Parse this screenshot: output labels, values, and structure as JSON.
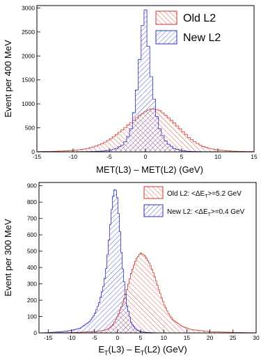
{
  "colors": {
    "old": "#d2332a",
    "new": "#2a2ec0",
    "axis": "#000000"
  },
  "chart_data": [
    {
      "type": "histogram",
      "xlabel": "MET(L3) – MET(L2)  (GeV)",
      "ylabel": "Event per 400 MeV",
      "xlim": [
        -15,
        15
      ],
      "ylim": [
        0,
        3050
      ],
      "xticks": [
        -15,
        -10,
        -5,
        0,
        5,
        10,
        15
      ],
      "yticks": [
        0,
        500,
        1000,
        1500,
        2000,
        2500,
        3000
      ],
      "bin_width": 0.4,
      "legend_position": "top-right",
      "series": [
        {
          "name": "Old L2",
          "color_key": "old",
          "x": [
            -15,
            -14,
            -13,
            -12,
            -11,
            -10,
            -9,
            -8,
            -7,
            -6,
            -5,
            -4,
            -3,
            -2,
            -1,
            0,
            0.5,
            1,
            1.5,
            2,
            2.5,
            3,
            4,
            5,
            6,
            7,
            8,
            9,
            10,
            11,
            12,
            13,
            14,
            15
          ],
          "y": [
            5,
            8,
            10,
            14,
            20,
            30,
            45,
            70,
            110,
            170,
            250,
            360,
            480,
            610,
            740,
            840,
            880,
            900,
            890,
            860,
            800,
            740,
            600,
            450,
            300,
            190,
            110,
            65,
            40,
            25,
            15,
            10,
            7,
            5
          ]
        },
        {
          "name": "New L2",
          "color_key": "new",
          "x": [
            -15,
            -10,
            -8,
            -6,
            -5,
            -4,
            -3,
            -2.5,
            -2,
            -1.5,
            -1,
            -0.6,
            -0.3,
            0,
            0.2,
            0.4,
            0.7,
            1,
            1.5,
            2,
            2.5,
            3,
            4,
            5,
            6,
            8,
            10,
            15
          ],
          "y": [
            0,
            2,
            5,
            15,
            30,
            70,
            160,
            280,
            480,
            900,
            1550,
            2300,
            2800,
            2960,
            2700,
            2200,
            1700,
            1300,
            800,
            480,
            300,
            180,
            70,
            25,
            10,
            4,
            2,
            0
          ]
        }
      ]
    },
    {
      "type": "histogram",
      "xlabel_parts": {
        "e1": "E",
        "sub1": "T",
        "mid": "(L3) – E",
        "sub2": "T",
        "end": "(L2)     (GeV)"
      },
      "ylabel": "Event per 300 MeV",
      "xlim": [
        -17,
        30
      ],
      "ylim": [
        0,
        920
      ],
      "xticks": [
        -15,
        -10,
        -5,
        0,
        5,
        10,
        15,
        20,
        25,
        30
      ],
      "yticks": [
        0,
        100,
        200,
        300,
        400,
        500,
        600,
        700,
        800,
        900
      ],
      "bin_width": 0.3,
      "legend_position": "top-right",
      "series": [
        {
          "name": "Old L2",
          "legend_parts": {
            "pre": "Old L2: <ΔE",
            "sub": "T",
            "post": ">=5.2 GeV"
          },
          "color_key": "old",
          "x": [
            -17,
            -10,
            -5,
            -3,
            -2,
            -1,
            0,
            1,
            2,
            3,
            4,
            5,
            6,
            7,
            8,
            9,
            10,
            11,
            12,
            14,
            16,
            20,
            25,
            30
          ],
          "y": [
            0,
            2,
            8,
            15,
            25,
            50,
            100,
            170,
            260,
            370,
            450,
            490,
            470,
            420,
            350,
            260,
            180,
            120,
            80,
            40,
            20,
            8,
            3,
            1
          ]
        },
        {
          "name": "New L2",
          "legend_parts": {
            "pre": "New L2: <ΔE",
            "sub": "T",
            "post": ">=0.4 GeV"
          },
          "color_key": "new",
          "x": [
            -17,
            -15,
            -12,
            -10,
            -8,
            -6,
            -5,
            -4,
            -3,
            -2.5,
            -2,
            -1.5,
            -1,
            -0.5,
            0,
            0.5,
            1,
            2,
            3,
            4,
            5,
            6,
            8,
            10
          ],
          "y": [
            0,
            2,
            8,
            15,
            30,
            70,
            110,
            180,
            290,
            380,
            520,
            680,
            830,
            895,
            820,
            640,
            430,
            170,
            60,
            20,
            8,
            4,
            1,
            0
          ]
        }
      ]
    }
  ]
}
